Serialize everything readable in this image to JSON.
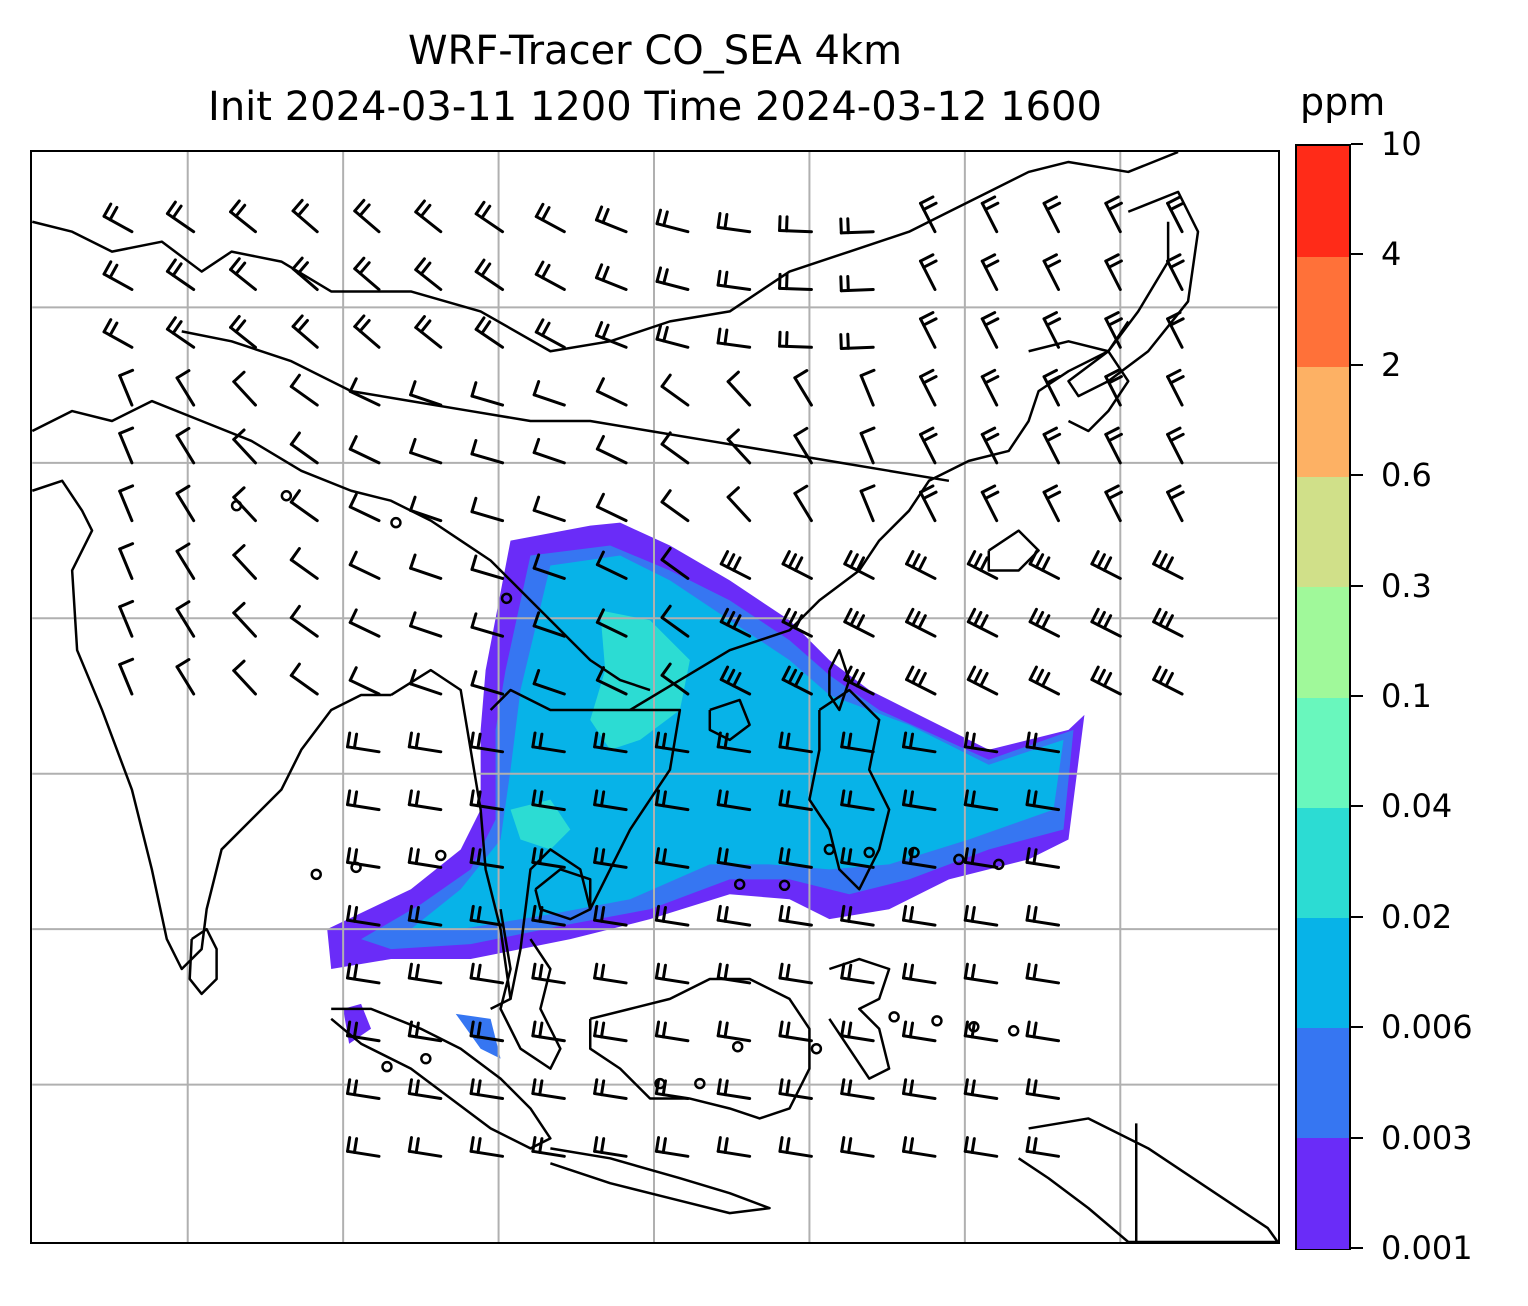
{
  "title": {
    "line1": "WRF-Tracer CO_SEA 4km",
    "line2": "Init 2024-03-11 1200 Time 2024-03-12 1600"
  },
  "colorbar": {
    "unit": "ppm",
    "levels": [
      "0.001",
      "0.003",
      "0.006",
      "0.02",
      "0.04",
      "0.1",
      "0.3",
      "0.6",
      "2",
      "4",
      "10"
    ],
    "colors": [
      "#6a2cf8",
      "#3676f2",
      "#07b3e8",
      "#2cdcd3",
      "#69f7bd",
      "#a0f99a",
      "#d0e089",
      "#fdb164",
      "#ff7139",
      "#ff2b18"
    ]
  },
  "map": {
    "coastline_color": "#000000",
    "grid_color": "#b0b0b0",
    "barb_color": "#000000",
    "plume_levels_shown": [
      "0.001",
      "0.003",
      "0.006",
      "0.02",
      "0.04"
    ]
  }
}
